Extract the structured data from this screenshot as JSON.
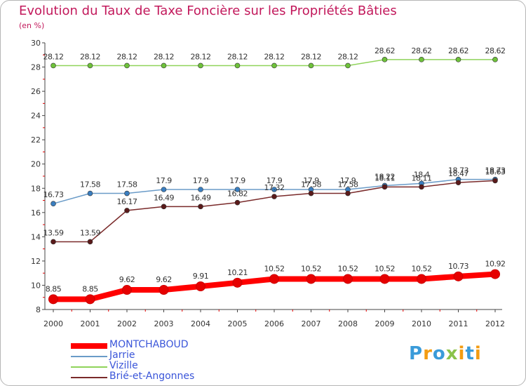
{
  "title": "Evolution du Taux de Taxe Foncière sur les Propriétés Bâties",
  "unit_label": "(en %)",
  "logo": {
    "letters": [
      {
        "ch": "P",
        "color": "#3a9bd9"
      },
      {
        "ch": "r",
        "color": "#f39c12"
      },
      {
        "ch": "o",
        "color": "#3a9bd9"
      },
      {
        "ch": "x",
        "color": "#8bc34a"
      },
      {
        "ch": "i",
        "color": "#f39c12"
      },
      {
        "ch": "t",
        "color": "#3a9bd9"
      },
      {
        "ch": "i",
        "color": "#f39c12"
      }
    ]
  },
  "chart_data": {
    "type": "line",
    "x": [
      "2000",
      "2001",
      "2002",
      "2003",
      "2004",
      "2005",
      "2006",
      "2007",
      "2008",
      "2009",
      "2010",
      "2011",
      "2012"
    ],
    "ylim": [
      8,
      30
    ],
    "yticks": [
      8,
      10,
      12,
      14,
      16,
      18,
      20,
      22,
      24,
      26,
      28,
      30
    ],
    "grid": false,
    "legend_position": "bottom-left",
    "series": [
      {
        "name": "MONTCHABOUD",
        "color": "#ff0000",
        "marker": "#e60000",
        "emphasis": true,
        "values": [
          8.85,
          8.85,
          9.62,
          9.62,
          9.91,
          10.21,
          10.52,
          10.52,
          10.52,
          10.52,
          10.52,
          10.73,
          10.92
        ],
        "labels": [
          "8.85",
          "8.85",
          "9.62",
          "9.62",
          "9.91",
          "10.21",
          "10.52",
          "10.52",
          "10.52",
          "10.52",
          "10.52",
          "10.73",
          "10.92"
        ]
      },
      {
        "name": "Jarrie",
        "color": "#6a9bc8",
        "marker": "#3a7ec0",
        "emphasis": false,
        "values": [
          16.73,
          17.58,
          17.58,
          17.9,
          17.9,
          17.9,
          17.9,
          17.9,
          17.9,
          18.22,
          18.4,
          18.73,
          18.73
        ],
        "labels": [
          "16.73",
          "17.58",
          "17.58",
          "17.9",
          "17.9",
          "17.9",
          "17.9",
          "17.9",
          "17.9",
          "18.22",
          "18.4",
          "18.73",
          "18.73"
        ]
      },
      {
        "name": "Vizille",
        "color": "#8fd35a",
        "marker": "#6ec23a",
        "emphasis": false,
        "values": [
          28.12,
          28.12,
          28.12,
          28.12,
          28.12,
          28.12,
          28.12,
          28.12,
          28.12,
          28.62,
          28.62,
          28.62,
          28.62
        ],
        "labels": [
          "28.12",
          "28.12",
          "28.12",
          "28.12",
          "28.12",
          "28.12",
          "28.12",
          "28.12",
          "28.12",
          "28.62",
          "28.62",
          "28.62",
          "28.62"
        ]
      },
      {
        "name": "Brié-et-Angonnes",
        "color": "#7a2a2a",
        "marker": "#5a1a1a",
        "emphasis": false,
        "values": [
          13.59,
          13.59,
          16.17,
          16.49,
          16.49,
          16.82,
          17.32,
          17.58,
          17.58,
          18.11,
          18.11,
          18.47,
          18.63
        ],
        "labels": [
          "13.59",
          "13.59",
          "16.17",
          "16.49",
          "16.49",
          "16.82",
          "17.32",
          "17.58",
          "17.58",
          "18.11",
          "18.11",
          "18.47",
          "18.63"
        ]
      }
    ]
  }
}
